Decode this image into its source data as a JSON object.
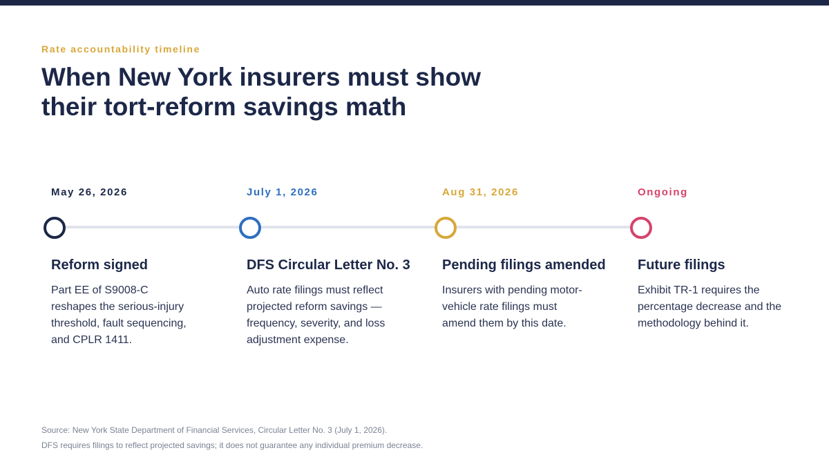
{
  "header": {
    "eyebrow": "Rate accountability timeline",
    "headline_line1": "When New York insurers must show",
    "headline_line2": "their tort-reform savings math"
  },
  "colors": {
    "navy": "#1c2748",
    "blue": "#2d6fbf",
    "gold": "#d8a73a",
    "crimson": "#d6436b",
    "track": "#e1e3ec"
  },
  "milestones": [
    {
      "date": "May 26, 2026",
      "title": "Reform signed",
      "description": "Part EE of S9008-C reshapes the serious-injury threshold, fault sequencing, and CPLR 1411.",
      "color": "#1c2748"
    },
    {
      "date": "July 1, 2026",
      "title": "DFS Circular Letter No. 3",
      "description": "Auto rate filings must reflect projected reform savings — frequency, severity, and loss adjustment expense.",
      "color": "#2d6fbf"
    },
    {
      "date": "Aug 31, 2026",
      "title": "Pending filings amended",
      "description": "Insurers with pending motor-vehicle rate filings must amend them by this date.",
      "color": "#d8a73a"
    },
    {
      "date": "Ongoing",
      "title": "Future filings",
      "description": "Exhibit TR-1 requires the percentage decrease and the methodology behind it.",
      "color": "#d6436b"
    }
  ],
  "footnotes": {
    "source": "Source: New York State Department of Financial Services, Circular Letter No. 3 (July 1, 2026).",
    "disclaimer": "DFS requires filings to reflect projected savings; it does not guarantee any individual premium decrease."
  }
}
